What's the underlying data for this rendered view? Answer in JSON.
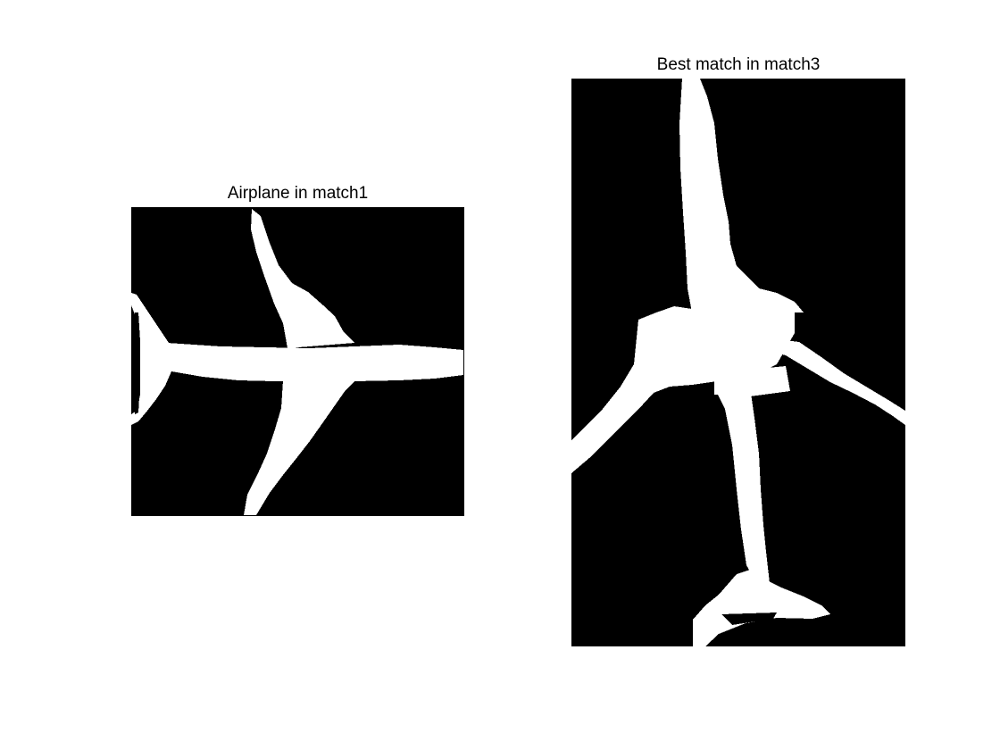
{
  "figure": {
    "background_color": "#ffffff",
    "image_background_color": "#000000",
    "shape_color": "#ffffff",
    "left_panel": {
      "title": "Airplane in match1",
      "content": "airplane-silhouette"
    },
    "right_panel": {
      "title": "Best match in match3",
      "content": "airplane-silhouette-rotated"
    }
  }
}
